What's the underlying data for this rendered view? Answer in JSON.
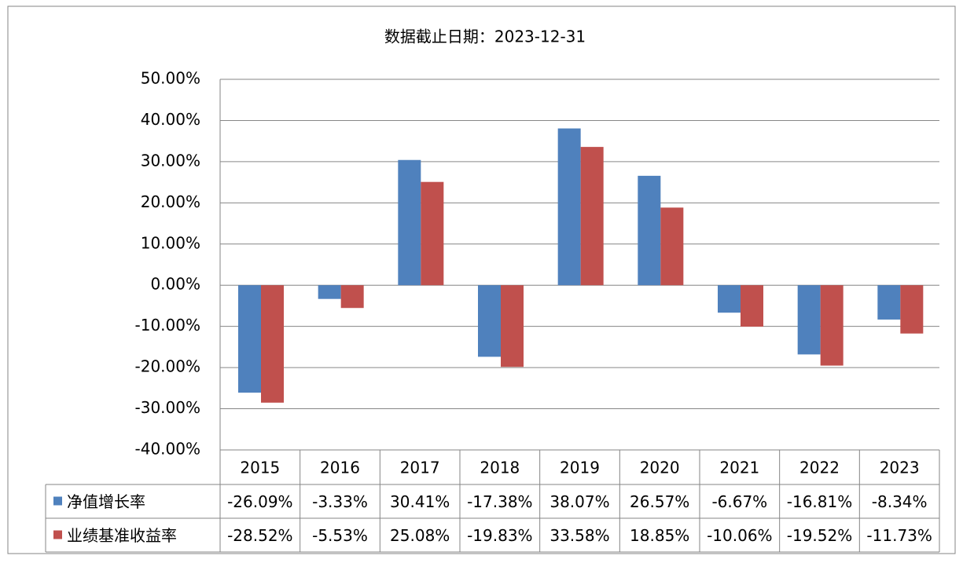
{
  "chart_data": {
    "type": "bar",
    "title": "数据截止日期：2023-12-31",
    "categories": [
      "2015",
      "2016",
      "2017",
      "2018",
      "2019",
      "2020",
      "2021",
      "2022",
      "2023"
    ],
    "series": [
      {
        "name": "净值增长率",
        "color": "#4f81bd",
        "values": [
          -26.09,
          -3.33,
          30.41,
          -17.38,
          38.07,
          26.57,
          -6.67,
          -16.81,
          -8.34
        ],
        "value_labels": [
          "-26.09%",
          "-3.33%",
          "30.41%",
          "-17.38%",
          "38.07%",
          "26.57%",
          "-6.67%",
          "-16.81%",
          "-8.34%"
        ]
      },
      {
        "name": "业绩基准收益率",
        "color": "#c0504d",
        "values": [
          -28.52,
          -5.53,
          25.08,
          -19.83,
          33.58,
          18.85,
          -10.06,
          -19.52,
          -11.73
        ],
        "value_labels": [
          "-28.52%",
          "-5.53%",
          "25.08%",
          "-19.83%",
          "33.58%",
          "18.85%",
          "-10.06%",
          "-19.52%",
          "-11.73%"
        ]
      }
    ],
    "ylim": [
      -40,
      50
    ],
    "yticks": [
      {
        "value": -40,
        "label": "-40.00%"
      },
      {
        "value": -30,
        "label": "-30.00%"
      },
      {
        "value": -20,
        "label": "-20.00%"
      },
      {
        "value": -10,
        "label": "-10.00%"
      },
      {
        "value": 0,
        "label": "0.00%"
      },
      {
        "value": 10,
        "label": "10.00%"
      },
      {
        "value": 20,
        "label": "20.00%"
      },
      {
        "value": 30,
        "label": "30.00%"
      },
      {
        "value": 40,
        "label": "40.00%"
      },
      {
        "value": 50,
        "label": "50.00%"
      }
    ],
    "grid": true
  }
}
